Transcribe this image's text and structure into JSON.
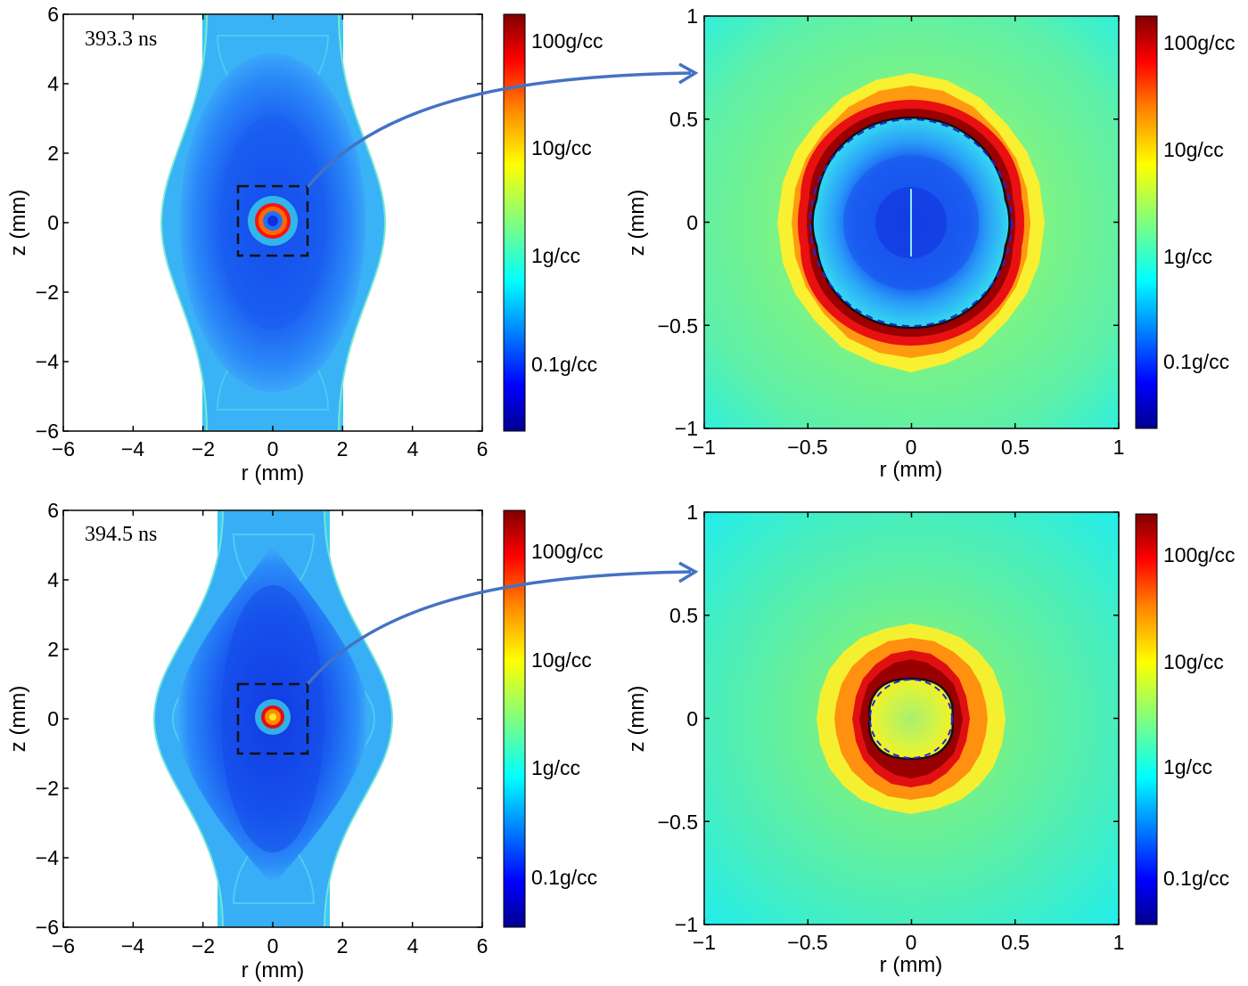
{
  "colormap": [
    "#00008f",
    "#0000ff",
    "#007fff",
    "#00ffff",
    "#7fff7f",
    "#ffff00",
    "#ff7f00",
    "#ff0000",
    "#7f0000"
  ],
  "chart_data": [
    {
      "type": "heatmap",
      "panel": "top-left",
      "annotation": "393.3 ns",
      "xlabel": "r (mm)",
      "ylabel": "z (mm)",
      "xlim": [
        -6,
        6
      ],
      "ylim": [
        -6,
        6
      ],
      "xticks": [
        "−6",
        "−4",
        "−2",
        "0",
        "2",
        "4",
        "6"
      ],
      "yticks": [
        "6",
        "4",
        "2",
        "0",
        "−2",
        "−4",
        "−6"
      ],
      "colorbar_labels": [
        "100g/cc",
        "10g/cc",
        "1g/cc",
        "0.1g/cc"
      ],
      "zoom_box": {
        "x": [
          -1,
          1
        ],
        "z": [
          -1,
          1
        ]
      },
      "liner_outer_radius_mm": 2.0,
      "bulge_radius_mm": 3.2,
      "hot_ring_radius_mm": 0.5
    },
    {
      "type": "heatmap",
      "panel": "top-right",
      "xlabel": "r (mm)",
      "ylabel": "z (mm)",
      "xlim": [
        -1,
        1
      ],
      "ylim": [
        -1,
        1
      ],
      "xticks": [
        "−1",
        "−0.5",
        "0",
        "0.5",
        "1"
      ],
      "yticks": [
        "1",
        "0.5",
        "0",
        "−0.5",
        "−1"
      ],
      "colorbar_labels": [
        "100g/cc",
        "10g/cc",
        "1g/cc",
        "0.1g/cc"
      ],
      "shell_inner_radius_mm": 0.5,
      "shell_outer_radius_mm": 0.66,
      "fuel_radius_mm": 0.33
    },
    {
      "type": "heatmap",
      "panel": "bottom-left",
      "annotation": "394.5 ns",
      "xlabel": "r (mm)",
      "ylabel": "z (mm)",
      "xlim": [
        -6,
        6
      ],
      "ylim": [
        -6,
        6
      ],
      "xticks": [
        "−6",
        "−4",
        "−2",
        "0",
        "2",
        "4",
        "6"
      ],
      "yticks": [
        "6",
        "4",
        "2",
        "0",
        "−2",
        "−4",
        "−6"
      ],
      "colorbar_labels": [
        "100g/cc",
        "10g/cc",
        "1g/cc",
        "0.1g/cc"
      ],
      "zoom_box": {
        "x": [
          -1,
          1
        ],
        "z": [
          -1,
          1
        ]
      },
      "liner_outer_radius_mm": 1.6,
      "bulge_radius_mm": 3.3,
      "hot_ring_radius_mm": 0.2
    },
    {
      "type": "heatmap",
      "panel": "bottom-right",
      "xlabel": "r (mm)",
      "ylabel": "z (mm)",
      "xlim": [
        -1,
        1
      ],
      "ylim": [
        -1,
        1
      ],
      "xticks": [
        "−1",
        "−0.5",
        "0",
        "0.5",
        "1"
      ],
      "yticks": [
        "1",
        "0.5",
        "0",
        "−0.5",
        "−1"
      ],
      "colorbar_labels": [
        "100g/cc",
        "10g/cc",
        "1g/cc",
        "0.1g/cc"
      ],
      "shell_inner_radius_mm": 0.2,
      "shell_outer_radius_mm": 0.32,
      "fuel_radius_mm": 0.0
    }
  ]
}
